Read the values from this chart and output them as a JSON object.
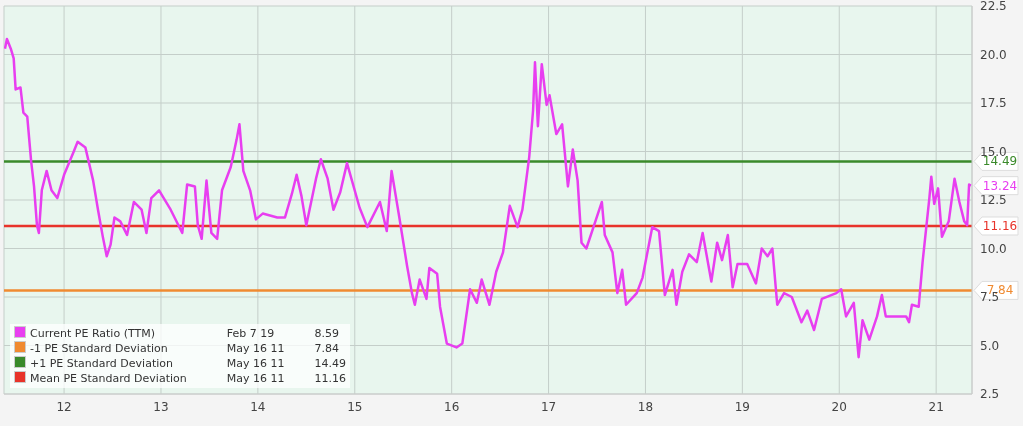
{
  "chart_data": {
    "type": "line",
    "legend": "bottom left",
    "grid": true,
    "marker": "none",
    "line_style": "solid",
    "xlim": [
      11.38,
      21.37
    ],
    "xticks": [
      12,
      13,
      14,
      15,
      16,
      17,
      18,
      19,
      20,
      21
    ],
    "ylim": [
      2.5,
      22.5
    ],
    "yticks": [
      {
        "value": 2.5,
        "label": "2.5"
      },
      {
        "value": 5,
        "label": "5.0"
      },
      {
        "value": 7.5,
        "label": "7.5"
      },
      {
        "value": 10,
        "label": "10.0"
      },
      {
        "value": 12.5,
        "label": "12.5"
      },
      {
        "value": 15,
        "label": "15.0"
      },
      {
        "value": 17.5,
        "label": "17.5"
      },
      {
        "value": 20,
        "label": "20.0"
      },
      {
        "value": 22.5,
        "label": "22.5"
      }
    ],
    "series": [
      {
        "name": "Current PE Ratio (TTM)",
        "color": "#e83ef0",
        "x": [
          11.39,
          11.41,
          11.45,
          11.48,
          11.5,
          11.55,
          11.58,
          11.62,
          11.66,
          11.69,
          11.72,
          11.74,
          11.77,
          11.82,
          11.87,
          11.93,
          12.0,
          12.1,
          12.14,
          12.22,
          12.3,
          12.35,
          12.4,
          12.44,
          12.48,
          12.52,
          12.58,
          12.65,
          12.72,
          12.8,
          12.85,
          12.9,
          12.98,
          13.1,
          13.22,
          13.27,
          13.35,
          13.38,
          13.42,
          13.47,
          13.52,
          13.58,
          13.63,
          13.72,
          13.78,
          13.81,
          13.85,
          13.92,
          13.98,
          14.05,
          14.2,
          14.28,
          14.35,
          14.4,
          14.45,
          14.5,
          14.6,
          14.65,
          14.72,
          14.78,
          14.85,
          14.92,
          15.05,
          15.13,
          15.26,
          15.33,
          15.38,
          15.46,
          15.54,
          15.59,
          15.62,
          15.67,
          15.74,
          15.77,
          15.85,
          15.88,
          15.95,
          16.05,
          16.11,
          16.19,
          16.26,
          16.31,
          16.39,
          16.46,
          16.53,
          16.6,
          16.68,
          16.73,
          16.8,
          16.84,
          16.86,
          16.89,
          16.93,
          16.98,
          17.01,
          17.08,
          17.14,
          17.2,
          17.25,
          17.3,
          17.34,
          17.39,
          17.49,
          17.55,
          17.58,
          17.66,
          17.71,
          17.76,
          17.8,
          17.91,
          17.97,
          18.07,
          18.14,
          18.2,
          18.28,
          18.32,
          18.38,
          18.45,
          18.53,
          18.59,
          18.68,
          18.74,
          18.79,
          18.85,
          18.9,
          18.95,
          19.05,
          19.14,
          19.2,
          19.26,
          19.31,
          19.36,
          19.43,
          19.51,
          19.61,
          19.67,
          19.74,
          19.82,
          19.97,
          20.02,
          20.07,
          20.15,
          20.2,
          20.24,
          20.31,
          20.39,
          20.44,
          20.48,
          20.55,
          20.69,
          20.72,
          20.75,
          20.82,
          20.86,
          20.93,
          20.95,
          20.98,
          21.02,
          21.06,
          21.13,
          21.19,
          21.24,
          21.29,
          21.32,
          21.34,
          21.36
        ],
        "values": [
          20.3,
          20.8,
          20.3,
          19.8,
          18.2,
          18.3,
          17.0,
          16.8,
          14.5,
          13.2,
          11.2,
          10.8,
          13.0,
          14.0,
          13.0,
          12.6,
          13.8,
          15.0,
          15.5,
          15.2,
          13.5,
          12.0,
          10.6,
          9.6,
          10.2,
          11.6,
          11.4,
          10.7,
          12.4,
          12.0,
          10.8,
          12.6,
          13.0,
          12.0,
          10.8,
          13.3,
          13.2,
          11.2,
          10.5,
          13.5,
          10.8,
          10.5,
          13.0,
          14.2,
          15.6,
          16.4,
          14.0,
          13.0,
          11.5,
          11.8,
          11.6,
          11.6,
          12.8,
          13.8,
          12.7,
          11.2,
          13.6,
          14.6,
          13.6,
          12.0,
          12.9,
          14.4,
          12.1,
          11.1,
          12.4,
          10.9,
          14.0,
          11.6,
          9.1,
          7.7,
          7.1,
          8.4,
          7.4,
          9.0,
          8.7,
          7.0,
          5.1,
          4.9,
          5.1,
          7.9,
          7.2,
          8.4,
          7.1,
          8.8,
          9.8,
          12.2,
          11.1,
          12.0,
          14.7,
          17.1,
          19.6,
          16.3,
          19.5,
          17.4,
          17.9,
          15.9,
          16.4,
          13.2,
          15.1,
          13.5,
          10.3,
          10.0,
          11.5,
          12.4,
          10.7,
          9.8,
          7.7,
          8.9,
          7.1,
          7.7,
          8.5,
          11.1,
          10.9,
          7.6,
          8.9,
          7.1,
          8.8,
          9.7,
          9.3,
          10.8,
          8.3,
          10.3,
          9.4,
          10.7,
          8.0,
          9.2,
          9.2,
          8.2,
          10.0,
          9.6,
          10.0,
          7.1,
          7.7,
          7.5,
          6.2,
          6.8,
          5.8,
          7.4,
          7.7,
          7.9,
          6.5,
          7.2,
          4.4,
          6.3,
          5.3,
          6.5,
          7.6,
          6.5,
          6.5,
          6.5,
          6.2,
          7.1,
          7.0,
          9.3,
          12.6,
          13.7,
          12.3,
          13.1,
          10.6,
          11.4,
          13.6,
          12.4,
          11.4,
          11.2,
          13.3,
          13.24
        ]
      }
    ],
    "ref_lines": [
      {
        "axis": "y",
        "value": 7.84,
        "label": "-1 PE Standard Deviation",
        "color": "#f08a30"
      },
      {
        "axis": "y",
        "value": 14.49,
        "label": "+1 PE Standard Deviation",
        "color": "#3a8a2a"
      },
      {
        "axis": "y",
        "value": 11.16,
        "label": "Mean PE Standard Deviation",
        "color": "#e8332a"
      }
    ],
    "annotations": [
      "Feb 7 19",
      "8.59",
      "May 16 11",
      "7.84",
      "May 16 11",
      "14.49",
      "May 16 11",
      "11.16",
      "13.24"
    ]
  }
}
